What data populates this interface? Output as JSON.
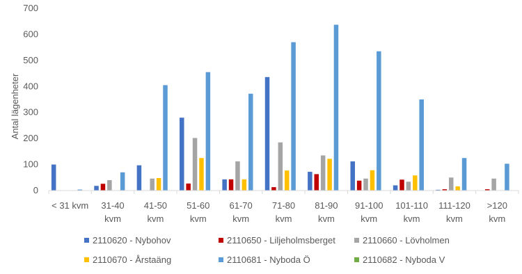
{
  "chart_data": {
    "type": "bar",
    "title": "",
    "xlabel": "",
    "ylabel": "Antal lägenheter",
    "ylim": [
      0,
      700
    ],
    "yticks": [
      0,
      100,
      200,
      300,
      400,
      500,
      600,
      700
    ],
    "grid": false,
    "legend_position": "bottom",
    "categories": [
      [
        "< 31 kvm"
      ],
      [
        "31-40",
        "kvm"
      ],
      [
        "41-50",
        "kvm"
      ],
      [
        "51-60",
        "kvm"
      ],
      [
        "61-70",
        "kvm"
      ],
      [
        "71-80",
        "kvm"
      ],
      [
        "81-90",
        "kvm"
      ],
      [
        "91-100",
        "kvm"
      ],
      [
        "101-110",
        "kvm"
      ],
      [
        "111-120",
        "kvm"
      ],
      [
        ">120",
        "kvm"
      ]
    ],
    "series": [
      {
        "name": "2110620 - Nybohov",
        "color": "#4472C4",
        "values": [
          100,
          18,
          97,
          280,
          43,
          436,
          72,
          112,
          20,
          3,
          0
        ]
      },
      {
        "name": "2110650 - Liljeholmsberget",
        "color": "#C00000",
        "values": [
          0,
          26,
          0,
          27,
          43,
          13,
          63,
          38,
          42,
          5,
          5
        ]
      },
      {
        "name": "2110660 - Lövholmen",
        "color": "#A5A5A5",
        "values": [
          0,
          40,
          46,
          202,
          112,
          185,
          135,
          46,
          34,
          50,
          46
        ]
      },
      {
        "name": "2110670 - Årstaäng",
        "color": "#FFC000",
        "values": [
          0,
          0,
          48,
          125,
          43,
          77,
          122,
          78,
          58,
          16,
          0
        ]
      },
      {
        "name": "2110681 - Nyboda Ö",
        "color": "#5B9BD5",
        "values": [
          4,
          70,
          405,
          455,
          372,
          570,
          637,
          535,
          350,
          125,
          103
        ]
      },
      {
        "name": "2110682 - Nyboda V",
        "color": "#70AD47",
        "values": [
          0,
          0,
          0,
          0,
          0,
          0,
          0,
          0,
          0,
          0,
          0
        ]
      }
    ]
  }
}
